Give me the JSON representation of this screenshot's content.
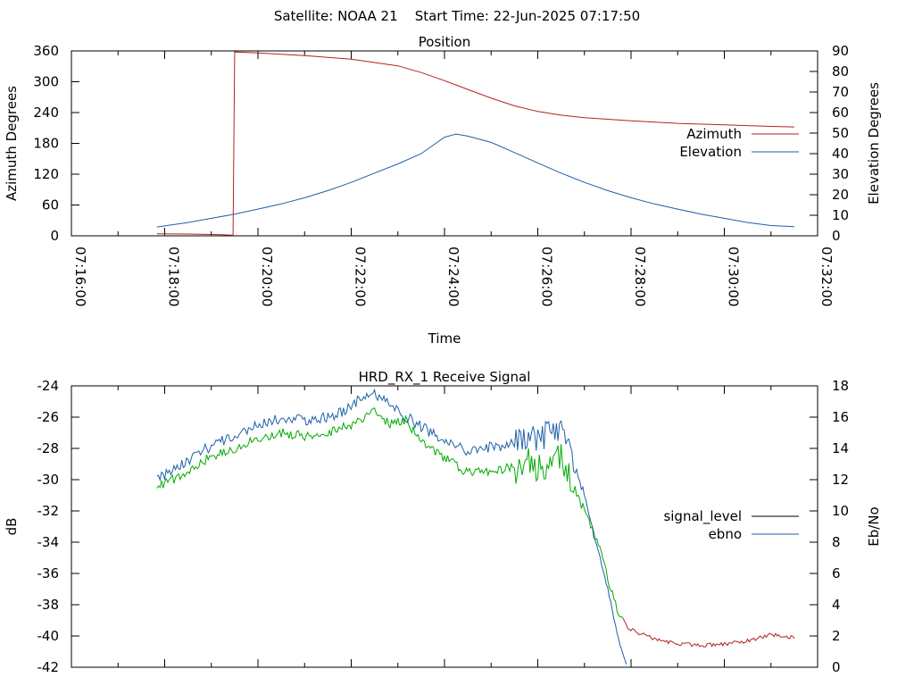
{
  "page_title": "Satellite: NOAA 21    Start Time: 22-Jun-2025 07:17:50",
  "chart_data": [
    {
      "type": "line",
      "title": "Position",
      "xlabel": "Time",
      "ylabel": "Azimuth Degrees",
      "y2label": "Elevation Degrees",
      "xlim": [
        "07:16:00",
        "07:32:00"
      ],
      "xticks": [
        "07:16:00",
        "07:18:00",
        "07:20:00",
        "07:22:00",
        "07:24:00",
        "07:26:00",
        "07:28:00",
        "07:30:00",
        "07:32:00"
      ],
      "ylim": [
        0,
        360
      ],
      "yticks": [
        0,
        60,
        120,
        180,
        240,
        300,
        360
      ],
      "y2lim": [
        0,
        90
      ],
      "y2ticks": [
        0,
        10,
        20,
        30,
        40,
        50,
        60,
        70,
        80,
        90
      ],
      "legend_position": "right",
      "series": [
        {
          "name": "Azimuth",
          "axis": "y",
          "color": "#b22222",
          "points": [
            [
              "07:17:50",
              4
            ],
            [
              "07:18:30",
              3.5
            ],
            [
              "07:19:10",
              2.5
            ],
            [
              "07:19:28",
              1
            ],
            [
              "07:19:30",
              358
            ],
            [
              "07:20:00",
              356
            ],
            [
              "07:21:00",
              351
            ],
            [
              "07:22:00",
              344
            ],
            [
              "07:23:00",
              331
            ],
            [
              "07:23:30",
              318
            ],
            [
              "07:24:00",
              302
            ],
            [
              "07:24:30",
              285
            ],
            [
              "07:25:00",
              268
            ],
            [
              "07:25:30",
              253
            ],
            [
              "07:26:00",
              242
            ],
            [
              "07:26:30",
              235
            ],
            [
              "07:27:00",
              230
            ],
            [
              "07:28:00",
              224
            ],
            [
              "07:29:00",
              219
            ],
            [
              "07:30:00",
              216
            ],
            [
              "07:31:00",
              213
            ],
            [
              "07:31:30",
              212
            ]
          ]
        },
        {
          "name": "Elevation",
          "axis": "y2",
          "color": "#1f5fa8",
          "points": [
            [
              "07:17:50",
              4.3
            ],
            [
              "07:18:30",
              6.5
            ],
            [
              "07:19:00",
              8.5
            ],
            [
              "07:19:30",
              10.5
            ],
            [
              "07:20:00",
              13
            ],
            [
              "07:20:30",
              15.5
            ],
            [
              "07:21:00",
              18.5
            ],
            [
              "07:21:30",
              22
            ],
            [
              "07:22:00",
              26
            ],
            [
              "07:22:30",
              30.5
            ],
            [
              "07:23:00",
              35
            ],
            [
              "07:23:30",
              40
            ],
            [
              "07:24:00",
              48
            ],
            [
              "07:24:15",
              49.5
            ],
            [
              "07:24:30",
              48.5
            ],
            [
              "07:25:00",
              45.5
            ],
            [
              "07:25:30",
              40.5
            ],
            [
              "07:26:00",
              35.5
            ],
            [
              "07:26:30",
              30.5
            ],
            [
              "07:27:00",
              26
            ],
            [
              "07:27:30",
              22
            ],
            [
              "07:28:00",
              18.5
            ],
            [
              "07:28:30",
              15.5
            ],
            [
              "07:29:00",
              13
            ],
            [
              "07:29:30",
              10.5
            ],
            [
              "07:30:00",
              8.5
            ],
            [
              "07:30:30",
              6.5
            ],
            [
              "07:31:00",
              5
            ],
            [
              "07:31:30",
              4.5
            ]
          ]
        }
      ]
    },
    {
      "type": "line",
      "title": "HRD_RX_1 Receive Signal",
      "ylabel": "dB",
      "y2label": "Eb/No",
      "xlim": [
        "07:16:00",
        "07:32:00"
      ],
      "ylim": [
        -42,
        -24
      ],
      "yticks": [
        -42,
        -40,
        -38,
        -36,
        -34,
        -32,
        -30,
        -28,
        -26,
        -24
      ],
      "y2lim": [
        0,
        18
      ],
      "y2ticks": [
        0,
        2,
        4,
        6,
        8,
        10,
        12,
        14,
        16,
        18
      ],
      "legend_position": "right",
      "legend": [
        {
          "name": "signal_level",
          "color": "#000000"
        },
        {
          "name": "ebno",
          "color": "#1f5fa8"
        }
      ],
      "series": [
        {
          "name": "signal_level",
          "axis": "y",
          "color": "#00aa00",
          "color_after_fade": "#b22222",
          "fade_time": "07:27:50",
          "points": [
            [
              "07:17:50",
              -30.5
            ],
            [
              "07:18:10",
              -30.0
            ],
            [
              "07:18:30",
              -29.5
            ],
            [
              "07:19:00",
              -28.5
            ],
            [
              "07:19:30",
              -28.0
            ],
            [
              "07:20:00",
              -27.4
            ],
            [
              "07:20:30",
              -27.0
            ],
            [
              "07:21:00",
              -27.2
            ],
            [
              "07:21:30",
              -27.0
            ],
            [
              "07:22:00",
              -26.5
            ],
            [
              "07:22:30",
              -25.6
            ],
            [
              "07:22:50",
              -26.5
            ],
            [
              "07:23:10",
              -26.2
            ],
            [
              "07:23:30",
              -27.5
            ],
            [
              "07:24:00",
              -28.6
            ],
            [
              "07:24:30",
              -29.6
            ],
            [
              "07:25:00",
              -29.4
            ],
            [
              "07:25:30",
              -29.2
            ],
            [
              "07:26:00",
              -29.0
            ],
            [
              "07:26:30",
              -28.7
            ],
            [
              "07:26:45",
              -30.5
            ],
            [
              "07:27:00",
              -32.0
            ],
            [
              "07:27:20",
              -34.5
            ],
            [
              "07:27:40",
              -38.0
            ],
            [
              "07:27:55",
              -39.5
            ],
            [
              "07:28:30",
              -40.2
            ],
            [
              "07:29:00",
              -40.5
            ],
            [
              "07:29:30",
              -40.6
            ],
            [
              "07:30:00",
              -40.5
            ],
            [
              "07:30:30",
              -40.3
            ],
            [
              "07:31:00",
              -39.9
            ],
            [
              "07:31:30",
              -40.1
            ]
          ]
        },
        {
          "name": "ebno",
          "axis": "y2",
          "color": "#1f5fa8",
          "points": [
            [
              "07:17:50",
              12.0
            ],
            [
              "07:18:10",
              12.6
            ],
            [
              "07:18:30",
              13.2
            ],
            [
              "07:19:00",
              14.2
            ],
            [
              "07:19:30",
              14.8
            ],
            [
              "07:20:00",
              15.6
            ],
            [
              "07:20:30",
              15.9
            ],
            [
              "07:21:00",
              15.8
            ],
            [
              "07:21:30",
              16.0
            ],
            [
              "07:22:00",
              16.6
            ],
            [
              "07:22:20",
              17.6
            ],
            [
              "07:22:40",
              17.2
            ],
            [
              "07:23:00",
              16.4
            ],
            [
              "07:23:30",
              15.4
            ],
            [
              "07:24:00",
              14.4
            ],
            [
              "07:24:30",
              13.8
            ],
            [
              "07:25:00",
              14.1
            ],
            [
              "07:25:30",
              14.3
            ],
            [
              "07:26:00",
              14.6
            ],
            [
              "07:26:30",
              15.4
            ],
            [
              "07:26:45",
              13.5
            ],
            [
              "07:27:00",
              11.0
            ],
            [
              "07:27:15",
              8.0
            ],
            [
              "07:27:30",
              5.0
            ],
            [
              "07:27:45",
              1.5
            ],
            [
              "07:27:55",
              0
            ]
          ]
        }
      ]
    }
  ]
}
